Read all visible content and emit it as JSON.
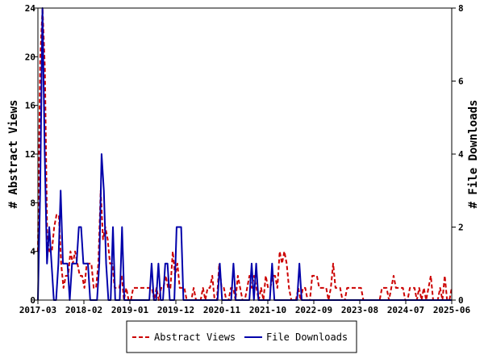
{
  "chart_data": {
    "type": "line",
    "x_labels": [
      "2017-03",
      "2018-02",
      "2019-01",
      "2019-12",
      "2020-11",
      "2021-10",
      "2022-09",
      "2023-08",
      "2024-07",
      "2025-06"
    ],
    "y_left": {
      "label": "# Abstract Views",
      "ticks": [
        0,
        4,
        8,
        12,
        16,
        20,
        24
      ],
      "lim": [
        0,
        24
      ]
    },
    "y_right": {
      "label": "# File Downloads",
      "ticks": [
        0,
        2,
        4,
        6,
        8
      ],
      "lim": [
        0,
        8
      ]
    },
    "grid": false,
    "legend_position": "bottom",
    "series": [
      {
        "name": "Abstract Views",
        "axis": "left",
        "color": "#cc0000",
        "dash": "dashed",
        "values": [
          4,
          20,
          24,
          19,
          5,
          4,
          4,
          6,
          7,
          7,
          3,
          1,
          2,
          2,
          4,
          3,
          4,
          3,
          2,
          2,
          1,
          3,
          3,
          3,
          1,
          1,
          3,
          9,
          5,
          6,
          5,
          3,
          3,
          1,
          1,
          1,
          2,
          0,
          1,
          0,
          0,
          1,
          1,
          1,
          1,
          1,
          1,
          1,
          1,
          1,
          0,
          1,
          0,
          1,
          1,
          2,
          1,
          1,
          4,
          2,
          3,
          1,
          1,
          1,
          0,
          0,
          0,
          1,
          0,
          0,
          0,
          1,
          0,
          1,
          1,
          2,
          0,
          0,
          3,
          1,
          1,
          0,
          0,
          1,
          1,
          0,
          2,
          1,
          0,
          0,
          1,
          2,
          1,
          2,
          1,
          0,
          1,
          0,
          2,
          1,
          1,
          2,
          2,
          1,
          4,
          3,
          4,
          3,
          1,
          0,
          0,
          0,
          1,
          0,
          1,
          1,
          0,
          0,
          2,
          2,
          2,
          1,
          1,
          1,
          1,
          0,
          1,
          3,
          1,
          1,
          1,
          0,
          0,
          1,
          1,
          1,
          1,
          1,
          1,
          1,
          0,
          0,
          0,
          0,
          0,
          0,
          0,
          0,
          1,
          1,
          1,
          0,
          1,
          2,
          1,
          1,
          1,
          1,
          0,
          0,
          1,
          1,
          1,
          0,
          1,
          0,
          1,
          0,
          1,
          2,
          0,
          0,
          0,
          1,
          0,
          2,
          0,
          0,
          1
        ]
      },
      {
        "name": "File Downloads",
        "axis": "right",
        "color": "#0000aa",
        "dash": "solid",
        "values": [
          0,
          3,
          8,
          4,
          1,
          2,
          1,
          0,
          0,
          1,
          3,
          1,
          1,
          1,
          0,
          1,
          1,
          1,
          2,
          2,
          1,
          1,
          1,
          0,
          0,
          0,
          0,
          1,
          4,
          3,
          1,
          0,
          0,
          2,
          0,
          0,
          0,
          2,
          0,
          0,
          0,
          0,
          0,
          0,
          0,
          0,
          0,
          0,
          0,
          0,
          1,
          0,
          0,
          1,
          0,
          0,
          1,
          1,
          0,
          0,
          0,
          2,
          2,
          2,
          0,
          0,
          0,
          0,
          0,
          0,
          0,
          0,
          0,
          0,
          0,
          0,
          0,
          0,
          0,
          0,
          1,
          0,
          0,
          0,
          0,
          0,
          1,
          0,
          0,
          0,
          0,
          0,
          0,
          0,
          1,
          0,
          1,
          0,
          0,
          0,
          0,
          0,
          0,
          1,
          0,
          0,
          0,
          0,
          0,
          0,
          0,
          0,
          0,
          0,
          0,
          1,
          0,
          0,
          0,
          0,
          0,
          0,
          0,
          0,
          0,
          0,
          0,
          0,
          0,
          0,
          0,
          0,
          0,
          0,
          0,
          0,
          0,
          0,
          0,
          0,
          0,
          0,
          0,
          0,
          0,
          0,
          0,
          0,
          0,
          0,
          0,
          0,
          0,
          0,
          0,
          0,
          0,
          0,
          0,
          0,
          0,
          0,
          0,
          0,
          0,
          0,
          0,
          0,
          0,
          0,
          0,
          0,
          0,
          0,
          0,
          0,
          0,
          0,
          0,
          0,
          0,
          0,
          0
        ]
      }
    ]
  }
}
